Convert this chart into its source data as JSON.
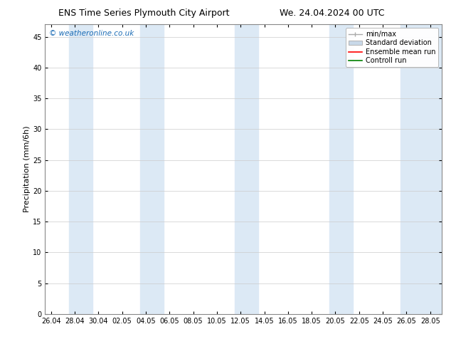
{
  "title_left": "ENS Time Series Plymouth City Airport",
  "title_right": "We. 24.04.2024 00 UTC",
  "ylabel": "Precipitation (mm/6h)",
  "ylim": [
    0,
    47
  ],
  "yticks": [
    0,
    5,
    10,
    15,
    20,
    25,
    30,
    35,
    40,
    45
  ],
  "background_color": "#ffffff",
  "plot_bg_color": "#ffffff",
  "watermark": "© weatheronline.co.uk",
  "watermark_color": "#1a6bb5",
  "xticklabels": [
    "26.04",
    "28.04",
    "30.04",
    "02.05",
    "04.05",
    "06.05",
    "08.05",
    "10.05",
    "12.05",
    "14.05",
    "16.05",
    "18.05",
    "20.05",
    "22.05",
    "24.05",
    "26.05",
    "28.05"
  ],
  "xtick_positions": [
    0,
    2,
    4,
    6,
    8,
    10,
    12,
    14,
    16,
    18,
    20,
    22,
    24,
    26,
    28,
    30,
    32
  ],
  "xmin": -0.5,
  "xmax": 33,
  "shade_bands": [
    {
      "xmin": 1.5,
      "xmax": 3.5
    },
    {
      "xmin": 7.5,
      "xmax": 9.5
    },
    {
      "xmin": 15.5,
      "xmax": 17.5
    },
    {
      "xmin": 23.5,
      "xmax": 25.5
    },
    {
      "xmin": 29.5,
      "xmax": 33.5
    }
  ],
  "shade_color": "#dce9f5",
  "grid_color": "#cccccc",
  "spine_color": "#888888",
  "tick_color": "#000000",
  "title_fontsize": 9,
  "label_fontsize": 8,
  "tick_fontsize": 7,
  "watermark_fontsize": 7.5,
  "legend_fontsize": 7
}
